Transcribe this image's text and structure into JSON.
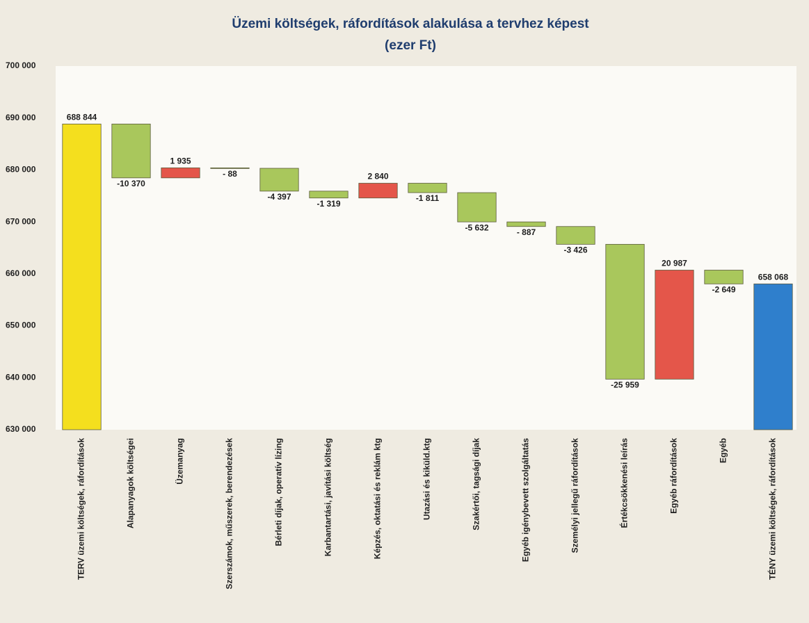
{
  "chart_data": {
    "type": "waterfall",
    "title": "Üzemi költségek, ráfordítások alakulása a tervhez képest",
    "subtitle": "(ezer Ft)",
    "categories": [
      "TERV üzemi költségek, ráfordítások",
      "Alapanyagok költségei",
      "Üzemanyag",
      "Szerszámok, műszerek, berendezések",
      "Bérleti díjak, operatív lízing",
      "Karbantartási, javítási költség",
      "Képzés, oktatási és reklám ktg",
      "Utazási és kiküld.ktg",
      "Szakértői, tagsági díjak",
      "Egyéb igénybevett szolgáltatás",
      "Személyi jellegű ráfordítások",
      "Értékcsökkenési leírás",
      "Egyéb ráfordítások",
      "Egyéb",
      "TÉNY üzemi költségek, ráfordítások"
    ],
    "values": [
      688844,
      -10370,
      1935,
      -88,
      -4397,
      -1319,
      2840,
      -1811,
      -5632,
      -887,
      -3426,
      -25959,
      20987,
      -2649,
      658068
    ],
    "value_labels": [
      "688 844",
      "-10 370",
      "1 935",
      "- 88",
      "-4 397",
      "-1 319",
      "2 840",
      "-1 811",
      "-5 632",
      "- 887",
      "-3 426",
      "-25 959",
      "20 987",
      "-2 649",
      "658 068"
    ],
    "colors": [
      "#f4df1e",
      "#a9c75c",
      "#e4564a",
      "#a9c75c",
      "#a9c75c",
      "#a9c75c",
      "#e4564a",
      "#a9c75c",
      "#a9c75c",
      "#a9c75c",
      "#a9c75c",
      "#a9c75c",
      "#e4564a",
      "#a9c75c",
      "#2f7fcc"
    ],
    "ylim": [
      630000,
      700000
    ],
    "yticks": [
      {
        "value": 630000,
        "label": "630 000"
      },
      {
        "value": 640000,
        "label": "640 000"
      },
      {
        "value": 650000,
        "label": "650 000"
      },
      {
        "value": 660000,
        "label": "660 000"
      },
      {
        "value": 670000,
        "label": "670 000"
      },
      {
        "value": 680000,
        "label": "680 000"
      },
      {
        "value": 690000,
        "label": "690 000"
      },
      {
        "value": 700000,
        "label": "700 000"
      }
    ],
    "grid": false
  }
}
